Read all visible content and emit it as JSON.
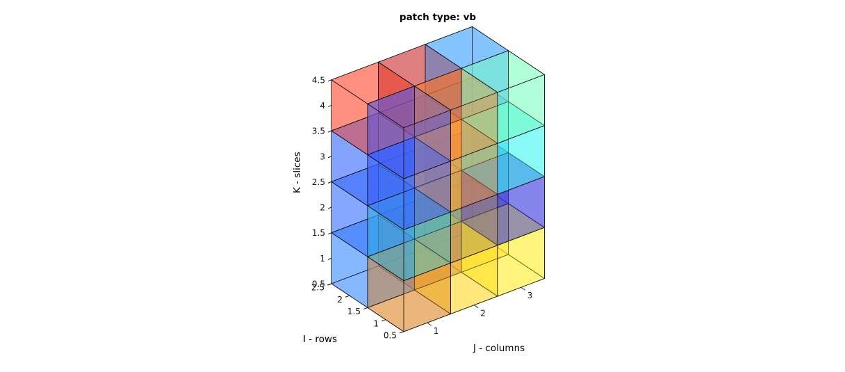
{
  "chart_data": {
    "type": "3d-voxel",
    "title": "patch type: vb",
    "xlabel": "J - columns",
    "ylabel": "I - rows",
    "zlabel": "K - slices",
    "xlim": [
      0.5,
      3.5
    ],
    "ylim": [
      0.5,
      2.5
    ],
    "zlim": [
      0.5,
      4.5
    ],
    "x_ticks": [
      "1",
      "2",
      "3"
    ],
    "y_ticks": [
      "0.5",
      "1",
      "1.5",
      "2",
      "2.5"
    ],
    "z_ticks": [
      "0.5",
      "1",
      "1.5",
      "2",
      "2.5",
      "3",
      "3.5",
      "4",
      "4.5"
    ],
    "face_alpha": 0.75,
    "colormap": "jet",
    "voxels_note": "24 voxels (I = 1..2, J = 1..3, K = 1..4), colored by value",
    "voxels": [
      {
        "i": 1,
        "j": 1,
        "k": 1,
        "color": "#e08a2a"
      },
      {
        "i": 1,
        "j": 2,
        "k": 1,
        "color": "#ffd72a"
      },
      {
        "i": 1,
        "j": 3,
        "k": 1,
        "color": "#fff02a"
      },
      {
        "i": 2,
        "j": 1,
        "k": 1,
        "color": "#3a8cff"
      },
      {
        "i": 2,
        "j": 2,
        "k": 1,
        "color": "#c86a5a"
      },
      {
        "i": 2,
        "j": 3,
        "k": 1,
        "color": "#ffe040"
      },
      {
        "i": 1,
        "j": 1,
        "k": 2,
        "color": "#30b8e0"
      },
      {
        "i": 1,
        "j": 2,
        "k": 2,
        "color": "#b09060"
      },
      {
        "i": 1,
        "j": 3,
        "k": 2,
        "color": "#3a3ae0"
      },
      {
        "i": 2,
        "j": 1,
        "k": 2,
        "color": "#3a70ff"
      },
      {
        "i": 2,
        "j": 2,
        "k": 2,
        "color": "#6ae8b0"
      },
      {
        "i": 2,
        "j": 3,
        "k": 2,
        "color": "#3a3ae0"
      },
      {
        "i": 1,
        "j": 1,
        "k": 3,
        "color": "#3a5aff"
      },
      {
        "i": 1,
        "j": 2,
        "k": 3,
        "color": "#ffa030"
      },
      {
        "i": 1,
        "j": 3,
        "k": 3,
        "color": "#40f8f0"
      },
      {
        "i": 2,
        "j": 1,
        "k": 3,
        "color": "#3a6aff"
      },
      {
        "i": 2,
        "j": 2,
        "k": 3,
        "color": "#ffc040"
      },
      {
        "i": 2,
        "j": 3,
        "k": 3,
        "color": "#40c8f0"
      },
      {
        "i": 1,
        "j": 1,
        "k": 4,
        "color": "#3a5aff"
      },
      {
        "i": 1,
        "j": 2,
        "k": 4,
        "color": "#ff8a30"
      },
      {
        "i": 1,
        "j": 3,
        "k": 4,
        "color": "#80ffc0"
      },
      {
        "i": 2,
        "j": 1,
        "k": 4,
        "color": "#ff4a30"
      },
      {
        "i": 2,
        "j": 2,
        "k": 4,
        "color": "#cc3030"
      },
      {
        "i": 2,
        "j": 3,
        "k": 4,
        "color": "#3aa0ff"
      }
    ]
  }
}
